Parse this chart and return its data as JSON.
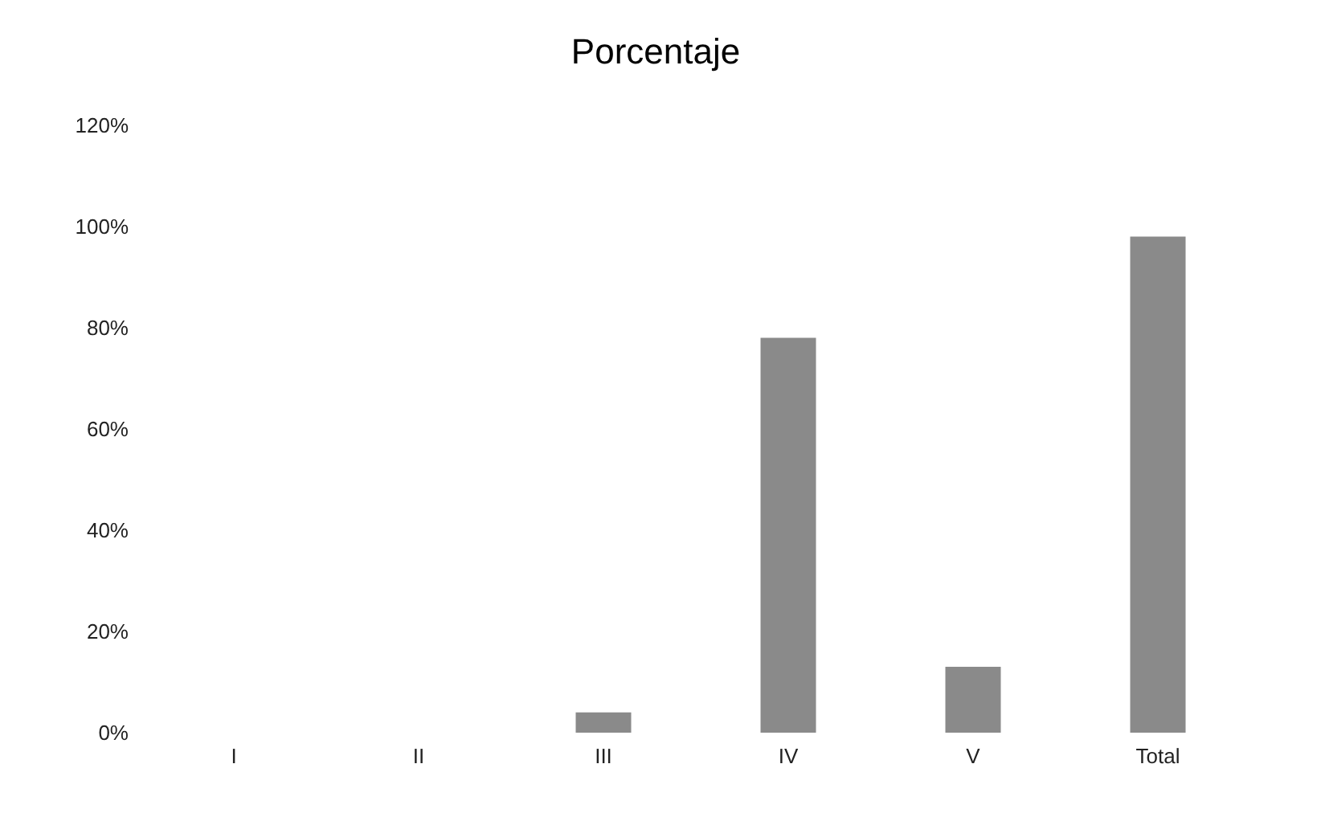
{
  "chart_data": {
    "type": "bar",
    "title": "Porcentaje",
    "categories": [
      "I",
      "II",
      "III",
      "IV",
      "V",
      "Total"
    ],
    "values": [
      0,
      0,
      4,
      78,
      13,
      98
    ],
    "color": "#8a8a8a",
    "ylim": [
      0,
      120
    ],
    "yticks": [
      {
        "value": 0,
        "label": "0%"
      },
      {
        "value": 20,
        "label": "20%"
      },
      {
        "value": 40,
        "label": "40%"
      },
      {
        "value": 60,
        "label": "60%"
      },
      {
        "value": 80,
        "label": "80%"
      },
      {
        "value": 100,
        "label": "100%"
      },
      {
        "value": 120,
        "label": "120%"
      }
    ],
    "grid": false
  }
}
